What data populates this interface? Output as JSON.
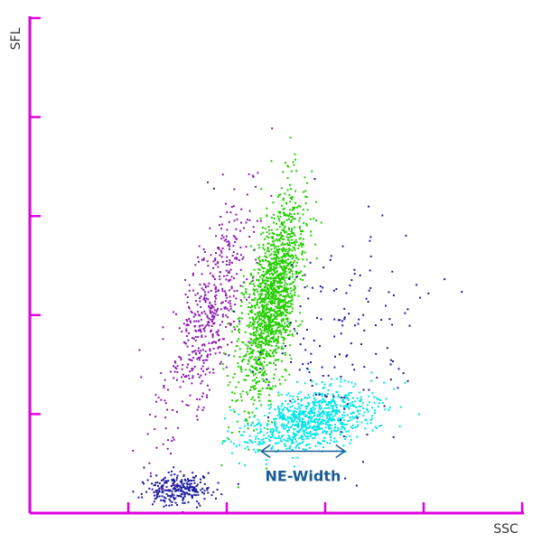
{
  "chart_data": {
    "type": "scatter",
    "title": "",
    "xlabel": "SSC",
    "ylabel": "SFL",
    "xlim": [
      0,
      100
    ],
    "ylim": [
      0,
      100
    ],
    "x_ticks": [
      20,
      40,
      60,
      80,
      100
    ],
    "y_ticks": [
      0,
      20,
      40,
      60,
      80,
      100
    ],
    "tick_labels_shown": false,
    "grid": false,
    "legend": "none",
    "axis_color": "#e000e0",
    "series": [
      {
        "key": "blue",
        "color": "#1c1c9c",
        "cluster": {
          "cx": 30,
          "cy": 5,
          "sx": 3.5,
          "sy": 1.6,
          "n": 260
        }
      },
      {
        "key": "purple",
        "color": "#8a1ab0",
        "cluster": {
          "cx": 36,
          "cy": 40,
          "sx": 4.5,
          "sy": 12,
          "n": 520,
          "rho": 0.75
        }
      },
      {
        "key": "green",
        "color": "#22cc00",
        "cluster": {
          "cx": 49,
          "cy": 43,
          "sx": 3.2,
          "sy": 10,
          "n": 1500,
          "rho": 0.6
        }
      },
      {
        "key": "cyan",
        "color": "#00e5e5",
        "cluster": {
          "cx": 57,
          "cy": 19,
          "sx": 6.5,
          "sy": 3.2,
          "n": 850,
          "rho": 0.45
        }
      },
      {
        "key": "navy-scatter",
        "color": "#1c1c9c",
        "cluster": {
          "cx": 62,
          "cy": 35,
          "sx": 9,
          "sy": 12,
          "n": 150,
          "rho": 0.1
        }
      }
    ],
    "annotations": [
      {
        "text": "NE-Width",
        "color": "#1a5d96",
        "x_from": 47,
        "x_to": 64,
        "y": 12.5,
        "text_x": 55.5,
        "text_y": 6.5
      }
    ]
  }
}
